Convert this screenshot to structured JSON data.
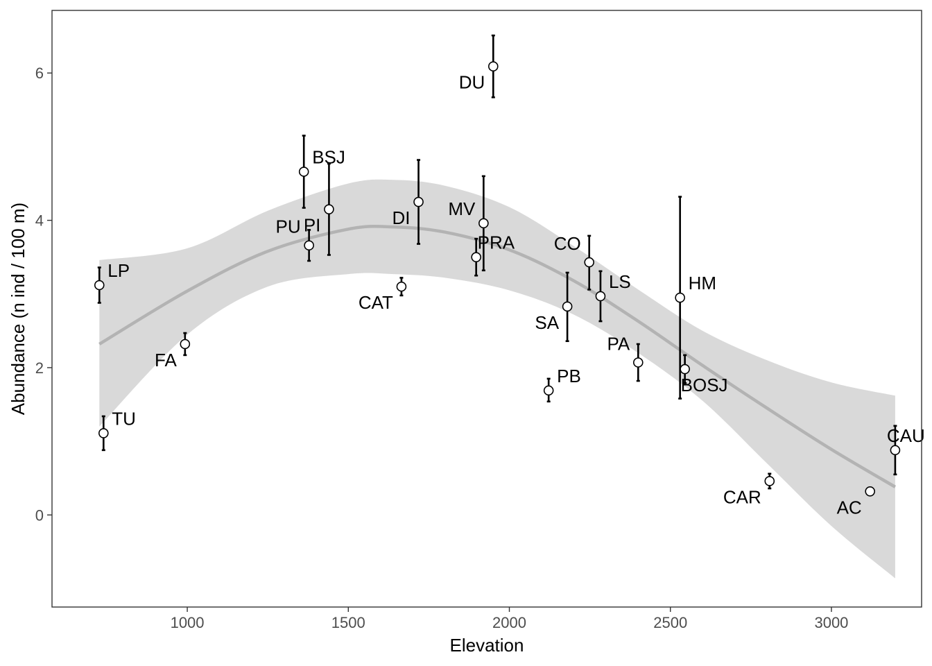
{
  "chart_data": {
    "type": "scatter",
    "title": "",
    "xlabel": "Elevation",
    "ylabel": "Abundance (n ind / 100 m)",
    "xlim": [
      580,
      3280
    ],
    "ylim": [
      -1.25,
      6.85
    ],
    "x_ticks": [
      1000,
      1500,
      2000,
      2500,
      3000
    ],
    "y_ticks": [
      0,
      2,
      4,
      6
    ],
    "grid": false,
    "legend": "none",
    "colors": {
      "points_fill": "#ffffff",
      "points_stroke": "#000000",
      "trend": "#b3b3b3",
      "band": "#d9d9d9"
    },
    "points": [
      {
        "label": "LP",
        "x": 727,
        "y": 3.12,
        "lo": 2.88,
        "hi": 3.36,
        "lpos": "right"
      },
      {
        "label": "TU",
        "x": 740,
        "y": 1.11,
        "lo": 0.88,
        "hi": 1.34,
        "lpos": "right"
      },
      {
        "label": "FA",
        "x": 993,
        "y": 2.32,
        "lo": 2.17,
        "hi": 2.47,
        "lpos": "below-left"
      },
      {
        "label": "BSJ",
        "x": 1362,
        "y": 4.66,
        "lo": 4.17,
        "hi": 5.15,
        "lpos": "right"
      },
      {
        "label": "PU",
        "x": 1378,
        "y": 3.66,
        "lo": 3.45,
        "hi": 3.87,
        "lpos": "above-left"
      },
      {
        "label": "PI",
        "x": 1440,
        "y": 4.15,
        "lo": 3.53,
        "hi": 4.77,
        "lpos": "below-left"
      },
      {
        "label": "CAT",
        "x": 1665,
        "y": 3.1,
        "lo": 2.98,
        "hi": 3.22,
        "lpos": "below-left"
      },
      {
        "label": "DI",
        "x": 1718,
        "y": 4.25,
        "lo": 3.68,
        "hi": 4.82,
        "lpos": "below-left"
      },
      {
        "label": "DU",
        "x": 1950,
        "y": 6.09,
        "lo": 5.67,
        "hi": 6.51,
        "lpos": "below-left"
      },
      {
        "label": "PRA",
        "x": 1897,
        "y": 3.5,
        "lo": 3.25,
        "hi": 3.75,
        "lpos": "above-right"
      },
      {
        "label": "MV",
        "x": 1920,
        "y": 3.96,
        "lo": 3.32,
        "hi": 4.6,
        "lpos": "left"
      },
      {
        "label": "PB",
        "x": 2122,
        "y": 1.69,
        "lo": 1.54,
        "hi": 1.85,
        "lpos": "right"
      },
      {
        "label": "SA",
        "x": 2180,
        "y": 2.83,
        "lo": 2.36,
        "hi": 3.29,
        "lpos": "below-left"
      },
      {
        "label": "CO",
        "x": 2248,
        "y": 3.43,
        "lo": 3.06,
        "hi": 3.79,
        "lpos": "above-left"
      },
      {
        "label": "LS",
        "x": 2283,
        "y": 2.97,
        "lo": 2.63,
        "hi": 3.31,
        "lpos": "right"
      },
      {
        "label": "PA",
        "x": 2400,
        "y": 2.07,
        "lo": 1.82,
        "hi": 2.32,
        "lpos": "above-left"
      },
      {
        "label": "HM",
        "x": 2530,
        "y": 2.95,
        "lo": 1.58,
        "hi": 4.32,
        "lpos": "right"
      },
      {
        "label": "BOSJ",
        "x": 2545,
        "y": 1.98,
        "lo": 1.79,
        "hi": 2.17,
        "lpos": "below-right"
      },
      {
        "label": "CAR",
        "x": 2808,
        "y": 0.46,
        "lo": 0.36,
        "hi": 0.56,
        "lpos": "below-left"
      },
      {
        "label": "AC",
        "x": 3120,
        "y": 0.32,
        "lo": 0.32,
        "hi": 0.32,
        "lpos": "below-left"
      },
      {
        "label": "CAU",
        "x": 3198,
        "y": 0.88,
        "lo": 0.55,
        "hi": 1.21,
        "lpos": "above"
      }
    ],
    "trend": {
      "x": [
        727,
        1000,
        1250,
        1500,
        1640,
        1800,
        2000,
        2200,
        2400,
        2600,
        2800,
        3000,
        3198
      ],
      "y": [
        2.32,
        3.04,
        3.58,
        3.88,
        3.91,
        3.84,
        3.6,
        3.18,
        2.63,
        2.03,
        1.45,
        0.89,
        0.38
      ],
      "lo": [
        1.2,
        2.45,
        3.1,
        3.27,
        3.27,
        3.22,
        3.05,
        2.72,
        2.2,
        1.55,
        0.7,
        -0.15,
        -0.86
      ],
      "hi": [
        3.46,
        3.62,
        4.13,
        4.5,
        4.55,
        4.47,
        4.18,
        3.65,
        3.06,
        2.5,
        2.1,
        1.8,
        1.62
      ]
    }
  }
}
